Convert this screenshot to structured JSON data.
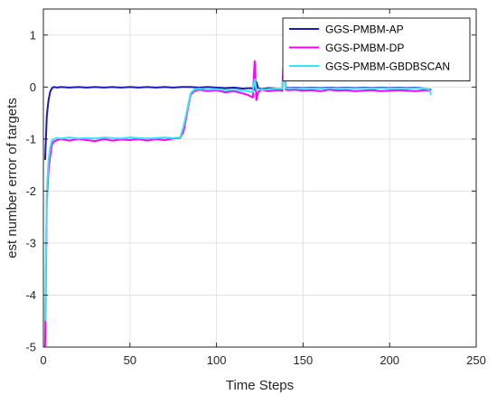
{
  "chart_data": {
    "type": "line",
    "xlabel": "Time Steps",
    "ylabel": "est number error of targets",
    "xlim": [
      0,
      250
    ],
    "ylim": [
      -5,
      1.5
    ],
    "xticks": [
      0,
      50,
      100,
      150,
      200,
      250
    ],
    "yticks": [
      -5,
      -4,
      -3,
      -2,
      -1,
      0,
      1
    ],
    "grid": true,
    "legend_position": "top-right",
    "series": [
      {
        "name": "GGS-PMBM-AP",
        "color": "#1a1ab8",
        "x": [
          1,
          2,
          3,
          4,
          5,
          6,
          8,
          10,
          15,
          20,
          25,
          30,
          35,
          40,
          45,
          50,
          55,
          60,
          65,
          70,
          75,
          80,
          85,
          90,
          95,
          100,
          105,
          110,
          115,
          120,
          122,
          123,
          124,
          126,
          130,
          135,
          138,
          139,
          140,
          142,
          145,
          150,
          155,
          160,
          165,
          170,
          175,
          180,
          185,
          190,
          195,
          200,
          205,
          210,
          215,
          220,
          224
        ],
        "y": [
          -1.4,
          -0.55,
          -0.25,
          -0.08,
          -0.02,
          0.0,
          -0.01,
          0.0,
          -0.01,
          0.0,
          -0.01,
          0.0,
          -0.01,
          0.0,
          -0.01,
          0.0,
          -0.01,
          0.0,
          -0.01,
          0.0,
          -0.01,
          0.0,
          0.0,
          -0.01,
          0.0,
          -0.01,
          -0.02,
          -0.01,
          -0.03,
          -0.02,
          -0.05,
          0.1,
          -0.02,
          -0.04,
          -0.02,
          -0.03,
          -0.03,
          0.35,
          -0.01,
          -0.02,
          -0.01,
          -0.02,
          -0.01,
          -0.02,
          -0.01,
          -0.02,
          -0.01,
          -0.02,
          -0.01,
          -0.02,
          -0.01,
          -0.02,
          -0.01,
          -0.02,
          -0.01,
          -0.03,
          -0.05
        ]
      },
      {
        "name": "GGS-PMBM-DP",
        "color": "#ff00ff",
        "x": [
          1,
          2,
          3,
          4,
          5,
          6,
          8,
          10,
          15,
          20,
          25,
          30,
          35,
          40,
          45,
          50,
          55,
          60,
          65,
          70,
          75,
          79,
          81,
          83,
          85,
          87,
          90,
          95,
          100,
          105,
          110,
          115,
          118,
          121,
          122,
          123,
          124,
          126,
          130,
          135,
          138,
          139,
          140,
          142,
          145,
          150,
          155,
          160,
          165,
          170,
          175,
          180,
          185,
          190,
          195,
          200,
          205,
          210,
          215,
          220,
          224
        ],
        "y": [
          -5.0,
          -2.2,
          -1.6,
          -1.3,
          -1.1,
          -1.05,
          -1.02,
          -1.0,
          -1.03,
          -1.0,
          -1.02,
          -1.04,
          -1.0,
          -1.03,
          -1.01,
          -1.02,
          -1.0,
          -1.03,
          -1.0,
          -1.02,
          -0.99,
          -0.98,
          -0.85,
          -0.5,
          -0.15,
          -0.08,
          -0.05,
          -0.08,
          -0.06,
          -0.1,
          -0.08,
          -0.12,
          -0.15,
          -0.2,
          0.5,
          -0.25,
          -0.1,
          -0.05,
          -0.08,
          -0.06,
          -0.07,
          0.75,
          -0.05,
          -0.06,
          -0.05,
          -0.07,
          -0.06,
          -0.08,
          -0.05,
          -0.07,
          -0.06,
          -0.08,
          -0.07,
          -0.06,
          -0.08,
          -0.07,
          -0.06,
          -0.07,
          -0.08,
          -0.06,
          -0.07
        ]
      },
      {
        "name": "GGS-PMBM-GBDBSCAN",
        "color": "#33e8f2",
        "x": [
          1,
          2,
          3,
          4,
          5,
          6,
          8,
          10,
          15,
          20,
          25,
          30,
          35,
          40,
          45,
          50,
          55,
          60,
          65,
          70,
          75,
          79,
          81,
          83,
          85,
          87,
          90,
          95,
          100,
          105,
          110,
          115,
          118,
          121,
          122,
          123,
          124,
          126,
          130,
          135,
          138,
          139,
          140,
          142,
          145,
          150,
          155,
          160,
          165,
          170,
          175,
          180,
          185,
          190,
          195,
          200,
          205,
          210,
          215,
          220,
          223,
          224
        ],
        "y": [
          -4.5,
          -2.0,
          -1.4,
          -1.15,
          -1.02,
          -1.0,
          -0.98,
          -0.99,
          -0.97,
          -0.99,
          -0.98,
          -0.99,
          -0.97,
          -0.98,
          -0.99,
          -0.97,
          -0.98,
          -0.99,
          -0.98,
          -0.97,
          -0.98,
          -0.97,
          -0.75,
          -0.45,
          -0.12,
          -0.05,
          -0.03,
          -0.05,
          -0.04,
          -0.06,
          -0.05,
          -0.07,
          -0.08,
          -0.1,
          0.15,
          -0.05,
          -0.04,
          -0.05,
          -0.04,
          -0.03,
          -0.03,
          0.3,
          -0.02,
          -0.03,
          -0.02,
          -0.03,
          -0.02,
          -0.03,
          -0.02,
          -0.03,
          -0.02,
          -0.03,
          -0.02,
          -0.03,
          -0.02,
          -0.03,
          -0.02,
          -0.03,
          -0.02,
          -0.03,
          -0.05,
          -0.15
        ]
      }
    ]
  }
}
